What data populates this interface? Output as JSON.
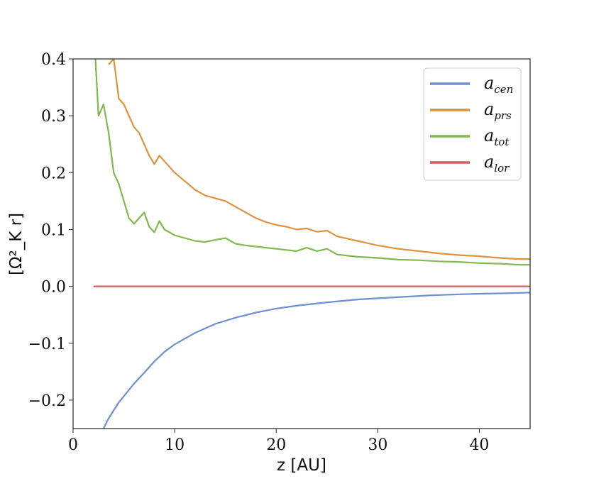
{
  "chart_data": {
    "type": "line",
    "title": "",
    "xlabel": "z [AU]",
    "ylabel": "[Ω²_K r]",
    "xlim": [
      0,
      45
    ],
    "ylim": [
      -0.25,
      0.4
    ],
    "x_ticks": [
      0,
      10,
      20,
      30,
      40
    ],
    "x_tick_labels": [
      "0",
      "10",
      "20",
      "30",
      "40"
    ],
    "y_ticks": [
      -0.2,
      -0.1,
      0.0,
      0.1,
      0.2,
      0.3,
      0.4
    ],
    "y_tick_labels": [
      "−0.2",
      "−0.1",
      "0.0",
      "0.1",
      "0.2",
      "0.3",
      "0.4"
    ],
    "grid": false,
    "legend_position": "top-right",
    "series": [
      {
        "name": "a_cen",
        "label_main": "a",
        "label_sub": "cen",
        "color": "#6f8fd0",
        "x": [
          2.0,
          3.0,
          3.5,
          4.0,
          4.5,
          5.0,
          6.0,
          7.0,
          8.0,
          9.0,
          10.0,
          12.0,
          14.0,
          16.0,
          18.0,
          20.0,
          22.0,
          25.0,
          28.0,
          30.0,
          33.0,
          35.0,
          38.0,
          40.0,
          43.0,
          45.0
        ],
        "y": [
          -0.27,
          -0.25,
          -0.232,
          -0.218,
          -0.204,
          -0.193,
          -0.171,
          -0.152,
          -0.132,
          -0.115,
          -0.102,
          -0.082,
          -0.066,
          -0.055,
          -0.046,
          -0.039,
          -0.034,
          -0.028,
          -0.023,
          -0.021,
          -0.018,
          -0.016,
          -0.014,
          -0.013,
          -0.012,
          -0.011
        ]
      },
      {
        "name": "a_prs",
        "label_main": "a",
        "label_sub": "prs",
        "color": "#e0913d",
        "x": [
          3.5,
          4.0,
          4.5,
          5.0,
          5.5,
          6.0,
          6.5,
          7.0,
          7.5,
          8.0,
          8.5,
          9.0,
          10.0,
          11.0,
          12.0,
          13.0,
          14.0,
          15.0,
          16.0,
          17.0,
          18.0,
          19.0,
          20.0,
          21.0,
          22.0,
          23.0,
          24.0,
          25.0,
          26.0,
          28.0,
          30.0,
          32.0,
          34.0,
          36.0,
          38.0,
          40.0,
          42.0,
          44.0,
          45.0
        ],
        "y": [
          0.39,
          0.4,
          0.33,
          0.32,
          0.3,
          0.28,
          0.27,
          0.25,
          0.23,
          0.215,
          0.23,
          0.22,
          0.2,
          0.185,
          0.17,
          0.16,
          0.155,
          0.15,
          0.14,
          0.13,
          0.12,
          0.113,
          0.108,
          0.105,
          0.1,
          0.102,
          0.096,
          0.098,
          0.088,
          0.08,
          0.072,
          0.066,
          0.062,
          0.058,
          0.055,
          0.053,
          0.05,
          0.048,
          0.048
        ]
      },
      {
        "name": "a_tot",
        "label_main": "a",
        "label_sub": "tot",
        "color": "#82b850",
        "x": [
          2.2,
          2.5,
          3.0,
          3.5,
          4.0,
          4.5,
          5.0,
          5.5,
          6.0,
          6.5,
          7.0,
          7.5,
          8.0,
          8.5,
          9.0,
          10.0,
          11.0,
          12.0,
          13.0,
          14.0,
          15.0,
          16.0,
          17.0,
          18.0,
          19.0,
          20.0,
          21.0,
          22.0,
          23.0,
          24.0,
          25.0,
          26.0,
          28.0,
          30.0,
          32.0,
          34.0,
          36.0,
          38.0,
          40.0,
          42.0,
          44.0,
          45.0
        ],
        "y": [
          0.4,
          0.3,
          0.32,
          0.27,
          0.2,
          0.18,
          0.15,
          0.12,
          0.11,
          0.12,
          0.13,
          0.105,
          0.095,
          0.115,
          0.1,
          0.09,
          0.085,
          0.08,
          0.078,
          0.082,
          0.085,
          0.075,
          0.072,
          0.07,
          0.068,
          0.066,
          0.064,
          0.062,
          0.068,
          0.062,
          0.066,
          0.056,
          0.052,
          0.05,
          0.047,
          0.046,
          0.044,
          0.043,
          0.041,
          0.04,
          0.038,
          0.038
        ]
      },
      {
        "name": "a_lor",
        "label_main": "a",
        "label_sub": "lor",
        "color": "#d0605e",
        "x": [
          2.0,
          45.0
        ],
        "y": [
          0.0,
          0.0
        ]
      }
    ]
  }
}
